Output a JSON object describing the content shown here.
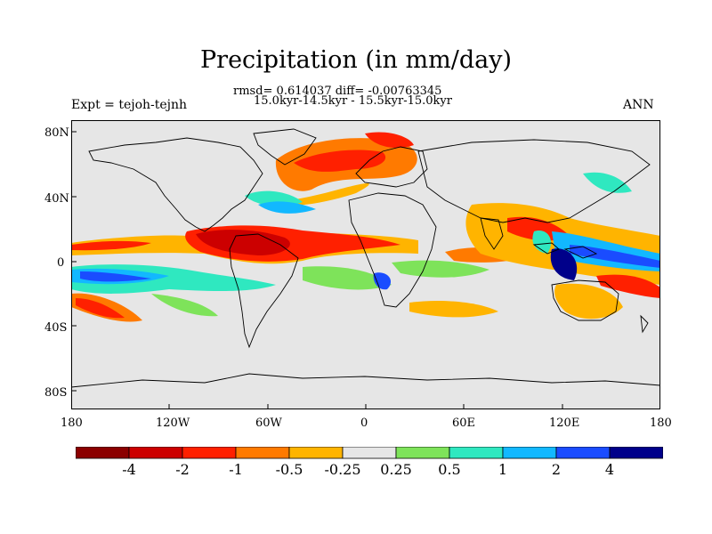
{
  "title": "Precipitation (in mm/day)",
  "stats_line": "rmsd= 0.614037 diff= -0.00763345",
  "period_line": "15.0kyr-14.5kyr - 15.5kyr-15.0kyr",
  "experiment_label": "Expt = tejoh-tejnh",
  "season_label": "ANN",
  "lat_ticks": [
    "80N",
    "40N",
    "0",
    "40S",
    "80S"
  ],
  "lon_ticks": [
    "180",
    "120W",
    "60W",
    "0",
    "60E",
    "120E",
    "180"
  ],
  "colorbar": {
    "labels": [
      "-4",
      "-2",
      "-1",
      "-0.5",
      "-0.25",
      "0.25",
      "0.5",
      "1",
      "2",
      "4"
    ],
    "colors": [
      "#8b0000",
      "#cc0000",
      "#ff2000",
      "#ff7a00",
      "#ffb400",
      "#e6e6e6",
      "#7ee35a",
      "#2fe8c0",
      "#12b8ff",
      "#1a4cff",
      "#00008a"
    ]
  },
  "colors": {
    "ocean_land_background": "#e6e6e6",
    "coastline": "#000000"
  }
}
